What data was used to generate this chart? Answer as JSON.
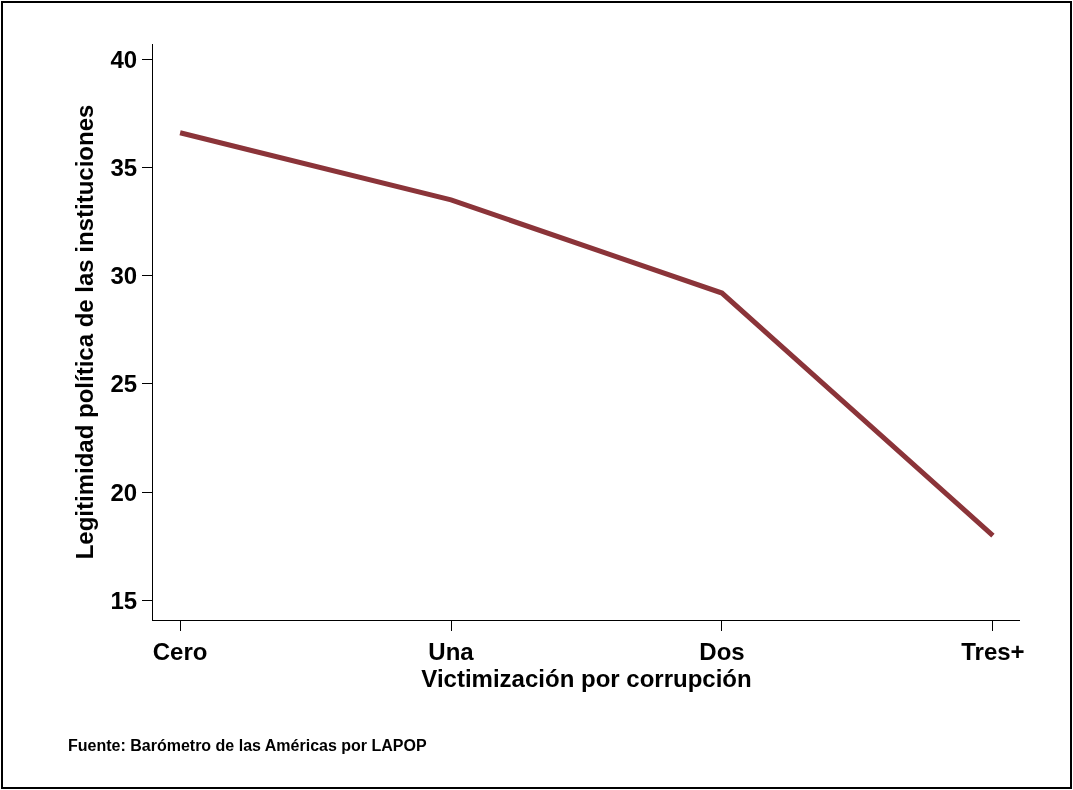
{
  "chart_data": {
    "type": "line",
    "xlabel": "Victimización por corrupción",
    "ylabel": "Legitimidad política de las instituciones",
    "categories": [
      "Cero",
      "Una",
      "Dos",
      "Tres+"
    ],
    "series": [
      {
        "color": "#8b3439",
        "values": [
          36.6,
          33.5,
          29.2,
          18.0
        ]
      }
    ],
    "ylim": [
      14.1,
      40.7
    ],
    "yticks": [
      15,
      20,
      25,
      30,
      35,
      40
    ],
    "marker": "none",
    "line_style": "solid",
    "annotations": [
      "Fuente: Barómetro de las Américas por LAPOP"
    ]
  }
}
